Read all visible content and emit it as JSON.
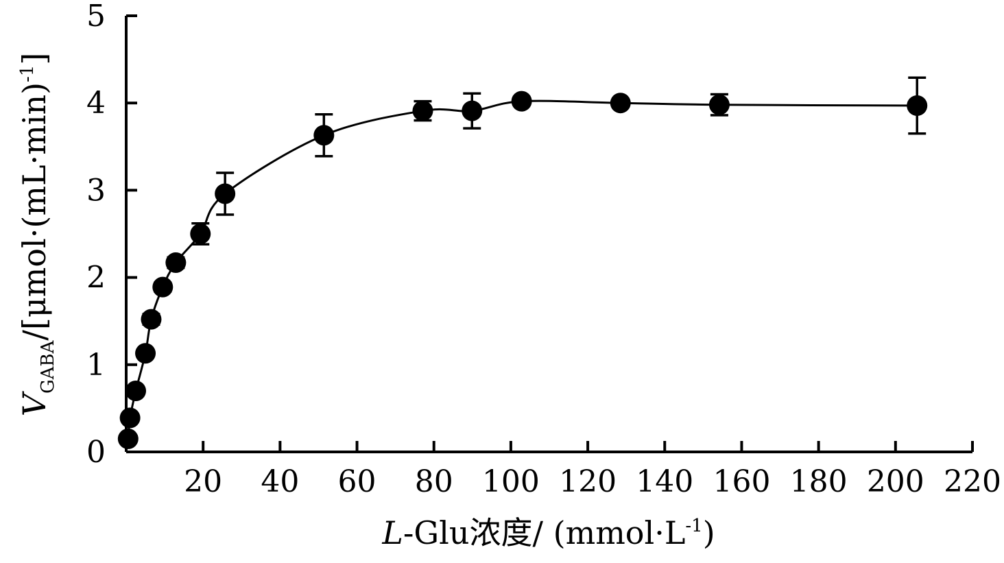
{
  "chart_data": {
    "type": "scatter",
    "title": "",
    "xlabel": {
      "italic": "L",
      "main": "-Glu浓度/ (mmol·L",
      "sup": "-1",
      "end": ")"
    },
    "ylabel": {
      "italic": "V",
      "sub": "GABA",
      "main": "/[μmol·(mL·min)",
      "sup": "-1",
      "end": "]"
    },
    "xlim": [
      0,
      220
    ],
    "ylim": [
      0,
      5
    ],
    "x_ticks": [
      20,
      40,
      60,
      80,
      100,
      120,
      140,
      160,
      180,
      200,
      220
    ],
    "x_tick_labels": [
      "20",
      "40",
      "60",
      "80",
      "100",
      "120",
      "140",
      "160",
      "180",
      "200",
      "220"
    ],
    "y_ticks": [
      0,
      1,
      2,
      3,
      4,
      5
    ],
    "y_tick_labels": [
      "0",
      "1",
      "2",
      "3",
      "4",
      "5"
    ],
    "grid": false,
    "legend": "none",
    "series": [
      {
        "color": "#000000",
        "marker": "filled-circle",
        "line": "smooth",
        "points": [
          {
            "x": 0.5,
            "y": 0.15,
            "err": 0
          },
          {
            "x": 1,
            "y": 0.39,
            "err": 0
          },
          {
            "x": 2.5,
            "y": 0.7,
            "err": 0
          },
          {
            "x": 5,
            "y": 1.13,
            "err": 0
          },
          {
            "x": 6.5,
            "y": 1.52,
            "err": 0.06
          },
          {
            "x": 9.5,
            "y": 1.89,
            "err": 0.05
          },
          {
            "x": 12.9,
            "y": 2.17,
            "err": 0.06
          },
          {
            "x": 19.3,
            "y": 2.5,
            "err": 0.12
          },
          {
            "x": 25.7,
            "y": 2.96,
            "err": 0.24
          },
          {
            "x": 51.4,
            "y": 3.63,
            "err": 0.24
          },
          {
            "x": 77.1,
            "y": 3.91,
            "err": 0.11
          },
          {
            "x": 89.9,
            "y": 3.91,
            "err": 0.2
          },
          {
            "x": 102.8,
            "y": 4.02,
            "err": 0
          },
          {
            "x": 128.5,
            "y": 4.0,
            "err": 0
          },
          {
            "x": 154.2,
            "y": 3.98,
            "err": 0.12
          },
          {
            "x": 205.6,
            "y": 3.97,
            "err": 0.32
          }
        ]
      }
    ]
  }
}
